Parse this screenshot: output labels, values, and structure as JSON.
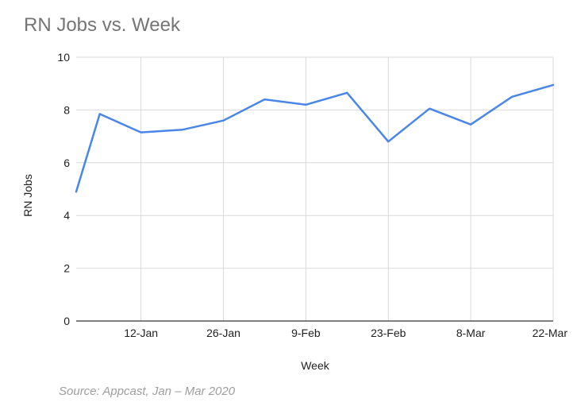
{
  "chart_data": {
    "type": "line",
    "title": "RN Jobs vs. Week",
    "xlabel": "Week",
    "ylabel": "RN Jobs",
    "ylim": [
      0,
      10
    ],
    "yticks": [
      "0",
      "2",
      "4",
      "6",
      "8",
      "10"
    ],
    "xticks": [
      "12-Jan",
      "26-Jan",
      "9-Feb",
      "23-Feb",
      "8-Mar",
      "22-Mar"
    ],
    "x": [
      "2020-01-01",
      "2020-01-05",
      "2020-01-12",
      "2020-01-19",
      "2020-01-26",
      "2020-02-02",
      "2020-02-09",
      "2020-02-16",
      "2020-02-23",
      "2020-03-01",
      "2020-03-08",
      "2020-03-15",
      "2020-03-22"
    ],
    "x_range": [
      "2020-01-01",
      "2020-03-22"
    ],
    "series": [
      {
        "values": [
          4.9,
          7.85,
          7.15,
          7.25,
          7.6,
          8.4,
          8.2,
          8.65,
          6.8,
          8.05,
          7.45,
          8.5,
          8.95
        ],
        "color": "#4a86e8"
      }
    ],
    "grid": true,
    "gridline_color": "#d9d9d9"
  },
  "source": "Source: Appcast, Jan – Mar 2020"
}
